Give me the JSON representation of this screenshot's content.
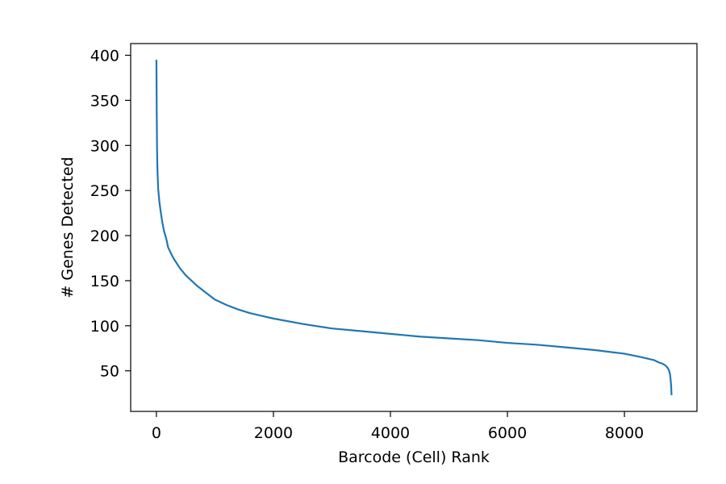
{
  "chart_data": {
    "type": "line",
    "title": "",
    "xlabel": "Barcode (Cell) Rank",
    "ylabel": "# Genes Detected",
    "xlim": [
      -440,
      9240
    ],
    "ylim": [
      5,
      413
    ],
    "xticks": [
      0,
      2000,
      4000,
      6000,
      8000
    ],
    "xtick_labels": [
      "0",
      "2000",
      "4000",
      "6000",
      "8000"
    ],
    "yticks": [
      50,
      100,
      150,
      200,
      250,
      300,
      350,
      400
    ],
    "ytick_labels": [
      "50",
      "100",
      "150",
      "200",
      "250",
      "300",
      "350",
      "400"
    ],
    "grid": false,
    "legend": "none",
    "series": [
      {
        "color": "#1f77b4",
        "x": [
          0,
          5,
          10,
          15,
          20,
          30,
          40,
          50,
          70,
          100,
          130,
          170,
          200,
          250,
          300,
          400,
          500,
          600,
          700,
          800,
          900,
          1000,
          1200,
          1400,
          1600,
          1800,
          2000,
          2500,
          3000,
          3500,
          4000,
          4500,
          5000,
          5500,
          6000,
          6500,
          7000,
          7500,
          8000,
          8300,
          8500,
          8600,
          8650,
          8700,
          8730,
          8760,
          8780,
          8790,
          8800,
          8805
        ],
        "y": [
          395,
          340,
          300,
          280,
          268,
          252,
          245,
          238,
          228,
          215,
          205,
          196,
          187,
          180,
          174,
          164,
          156,
          150,
          144,
          139,
          134,
          129,
          123,
          118,
          114,
          111,
          108,
          102,
          97,
          94,
          91,
          88,
          86,
          84,
          81,
          79,
          76,
          73,
          69,
          65,
          62,
          59,
          58,
          56,
          54,
          51,
          46,
          40,
          32,
          23
        ]
      }
    ]
  }
}
